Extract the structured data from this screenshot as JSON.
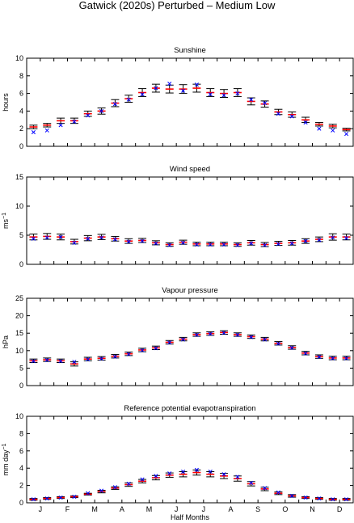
{
  "figure": {
    "title": "Gatwick (2020s) Perturbed – Medium Low",
    "xlabel": "Half Months",
    "month_labels": [
      "J",
      "F",
      "M",
      "A",
      "M",
      "J",
      "J",
      "A",
      "S",
      "O",
      "N",
      "D"
    ],
    "colors": {
      "error_bar": "#000000",
      "mean": "#ff0000",
      "observed": "#0000ff",
      "axes": "#000000"
    }
  },
  "chart_data": [
    {
      "type": "errorbar",
      "title": "Sunshine",
      "xlabel": "",
      "ylabel": "hours",
      "ylim": [
        0,
        10
      ],
      "yticks": [
        0,
        2,
        4,
        6,
        8,
        10
      ],
      "x": [
        1,
        2,
        3,
        4,
        5,
        6,
        7,
        8,
        9,
        10,
        11,
        12,
        13,
        14,
        15,
        16,
        17,
        18,
        19,
        20,
        21,
        22,
        23,
        24
      ],
      "series": [
        {
          "marker": "bar",
          "mean": [
            2.2,
            2.4,
            2.9,
            2.9,
            3.7,
            4.0,
            4.9,
            5.4,
            6.1,
            6.6,
            6.5,
            6.5,
            6.6,
            6.1,
            6.0,
            6.1,
            5.1,
            4.8,
            3.9,
            3.6,
            3.0,
            2.5,
            2.3,
            1.9
          ],
          "halfwidth": [
            0.2,
            0.2,
            0.3,
            0.3,
            0.3,
            0.35,
            0.4,
            0.4,
            0.45,
            0.45,
            0.45,
            0.5,
            0.45,
            0.45,
            0.45,
            0.45,
            0.4,
            0.35,
            0.3,
            0.3,
            0.3,
            0.2,
            0.2,
            0.15
          ]
        },
        {
          "marker": "x",
          "values": [
            1.6,
            1.8,
            2.4,
            2.8,
            3.5,
            4.0,
            4.8,
            5.3,
            5.9,
            6.6,
            7.1,
            6.3,
            7.0,
            5.9,
            5.8,
            6.0,
            5.3,
            4.9,
            3.7,
            3.4,
            2.7,
            2.0,
            1.8,
            1.4
          ]
        }
      ]
    },
    {
      "type": "errorbar",
      "title": "Wind speed",
      "xlabel": "",
      "ylabel": "ms",
      "ylabel_sup": "−1",
      "ylim": [
        0,
        15
      ],
      "yticks": [
        0,
        5,
        10,
        15
      ],
      "x": [
        1,
        2,
        3,
        4,
        5,
        6,
        7,
        8,
        9,
        10,
        11,
        12,
        13,
        14,
        15,
        16,
        17,
        18,
        19,
        20,
        21,
        22,
        23,
        24
      ],
      "series": [
        {
          "marker": "bar",
          "mean": [
            4.7,
            4.8,
            4.7,
            3.9,
            4.5,
            4.7,
            4.4,
            4.0,
            4.1,
            3.7,
            3.4,
            3.8,
            3.5,
            3.5,
            3.5,
            3.4,
            3.7,
            3.4,
            3.6,
            3.7,
            4.0,
            4.3,
            4.7,
            4.7
          ],
          "halfwidth": [
            0.5,
            0.5,
            0.5,
            0.4,
            0.45,
            0.45,
            0.4,
            0.4,
            0.35,
            0.35,
            0.3,
            0.35,
            0.3,
            0.3,
            0.3,
            0.3,
            0.4,
            0.35,
            0.35,
            0.4,
            0.4,
            0.4,
            0.55,
            0.5
          ]
        },
        {
          "marker": "x",
          "values": [
            4.4,
            4.6,
            4.7,
            3.7,
            4.4,
            4.6,
            4.3,
            3.9,
            4.0,
            3.6,
            3.3,
            3.7,
            3.4,
            3.4,
            3.4,
            3.3,
            3.6,
            3.3,
            3.5,
            3.6,
            4.0,
            4.2,
            4.6,
            4.5
          ]
        }
      ]
    },
    {
      "type": "errorbar",
      "title": "Vapour pressure",
      "xlabel": "",
      "ylabel": "hPa",
      "ylim": [
        0,
        25
      ],
      "yticks": [
        0,
        5,
        10,
        15,
        20,
        25
      ],
      "x": [
        1,
        2,
        3,
        4,
        5,
        6,
        7,
        8,
        9,
        10,
        11,
        12,
        13,
        14,
        15,
        16,
        17,
        18,
        19,
        20,
        21,
        22,
        23,
        24
      ],
      "series": [
        {
          "marker": "bar",
          "mean": [
            7.1,
            7.4,
            7.1,
            6.2,
            7.6,
            7.8,
            8.4,
            9.1,
            10.2,
            10.8,
            12.4,
            13.3,
            14.6,
            14.9,
            15.2,
            14.6,
            14.0,
            13.3,
            12.1,
            10.9,
            9.3,
            8.3,
            7.9,
            7.9
          ],
          "halfwidth": [
            0.5,
            0.5,
            0.5,
            0.6,
            0.5,
            0.5,
            0.5,
            0.5,
            0.5,
            0.5,
            0.5,
            0.5,
            0.5,
            0.5,
            0.5,
            0.5,
            0.5,
            0.5,
            0.5,
            0.5,
            0.5,
            0.5,
            0.5,
            0.5
          ]
        },
        {
          "marker": "x",
          "values": [
            7.0,
            7.3,
            7.0,
            6.8,
            7.5,
            7.7,
            8.3,
            9.0,
            10.1,
            10.7,
            12.3,
            13.2,
            14.5,
            14.8,
            15.1,
            14.5,
            13.9,
            13.2,
            12.0,
            10.8,
            9.2,
            8.2,
            7.8,
            7.8
          ]
        }
      ]
    },
    {
      "type": "errorbar",
      "title": "Reference potential evapotranspiration",
      "xlabel": "Half Months",
      "ylabel": "mm day",
      "ylabel_sup": "−1",
      "ylim": [
        0,
        10
      ],
      "yticks": [
        0,
        2,
        4,
        6,
        8,
        10
      ],
      "x": [
        1,
        2,
        3,
        4,
        5,
        6,
        7,
        8,
        9,
        10,
        11,
        12,
        13,
        14,
        15,
        16,
        17,
        18,
        19,
        20,
        21,
        22,
        23,
        24
      ],
      "series": [
        {
          "marker": "bar",
          "mean": [
            0.4,
            0.5,
            0.6,
            0.7,
            1.0,
            1.3,
            1.7,
            2.1,
            2.5,
            2.9,
            3.2,
            3.3,
            3.5,
            3.3,
            3.1,
            2.8,
            2.2,
            1.6,
            1.1,
            0.8,
            0.6,
            0.5,
            0.4,
            0.4
          ],
          "halfwidth": [
            0.1,
            0.1,
            0.1,
            0.1,
            0.1,
            0.15,
            0.15,
            0.2,
            0.2,
            0.25,
            0.25,
            0.3,
            0.3,
            0.3,
            0.3,
            0.3,
            0.25,
            0.2,
            0.15,
            0.15,
            0.1,
            0.1,
            0.1,
            0.1
          ]
        },
        {
          "marker": "x",
          "values": [
            0.4,
            0.5,
            0.6,
            0.7,
            1.1,
            1.4,
            1.8,
            2.2,
            2.7,
            3.1,
            3.4,
            3.6,
            3.8,
            3.6,
            3.3,
            3.0,
            2.3,
            1.7,
            1.2,
            0.8,
            0.6,
            0.5,
            0.4,
            0.4
          ]
        }
      ]
    }
  ]
}
